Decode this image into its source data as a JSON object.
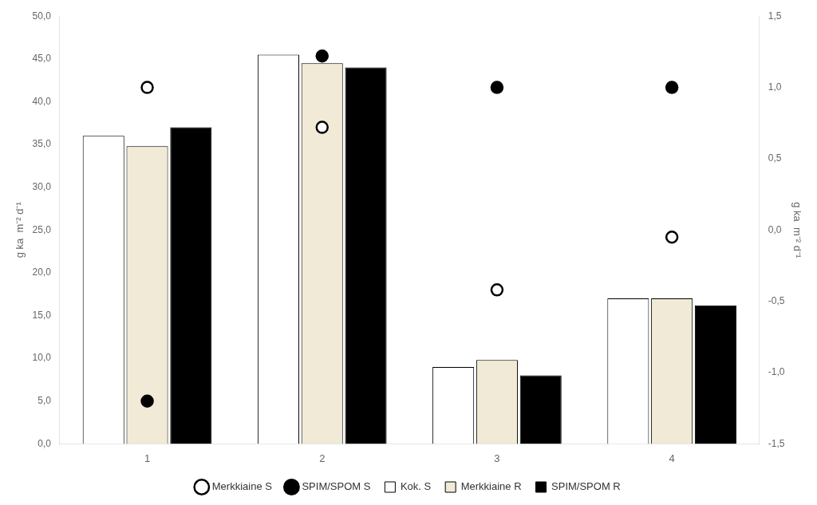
{
  "chart_data": {
    "type": "bar",
    "categories": [
      "1",
      "2",
      "3",
      "4"
    ],
    "series": [
      {
        "name": "Kok. S",
        "type": "bar",
        "color": "#ffffff",
        "values": [
          36.0,
          45.5,
          9.0,
          17.0
        ]
      },
      {
        "name": "Merkkiaine R",
        "type": "bar",
        "color": "#f0ead6",
        "values": [
          34.8,
          44.5,
          9.8,
          17.0
        ]
      },
      {
        "name": "SPIM/SPOM R",
        "type": "bar",
        "color": "#000000",
        "values": [
          37.0,
          44.0,
          8.0,
          16.2
        ]
      },
      {
        "name": "Merkkiaine S",
        "type": "scatter",
        "marker": "circle",
        "color": "#ffffff",
        "axis": "y2",
        "values": [
          1.0,
          0.72,
          -0.42,
          -0.05
        ]
      },
      {
        "name": "SPIM/SPOM S",
        "type": "scatter",
        "marker": "circle",
        "color": "#000000",
        "axis": "y2",
        "values": [
          -1.2,
          1.22,
          1.0,
          1.0
        ]
      }
    ],
    "ylabel": "g ka  m⁻² d⁻¹",
    "y2label": "g ka  m⁻² d⁻¹",
    "ylim": [
      0.0,
      50.0
    ],
    "yticks": [
      {
        "value": 0.0,
        "label": "0,0"
      },
      {
        "value": 5.0,
        "label": "5,0"
      },
      {
        "value": 10.0,
        "label": "10,0"
      },
      {
        "value": 15.0,
        "label": "15,0"
      },
      {
        "value": 20.0,
        "label": "20,0"
      },
      {
        "value": 25.0,
        "label": "25,0"
      },
      {
        "value": 30.0,
        "label": "30,0"
      },
      {
        "value": 35.0,
        "label": "35,0"
      },
      {
        "value": 40.0,
        "label": "40,0"
      },
      {
        "value": 45.0,
        "label": "45,0"
      },
      {
        "value": 50.0,
        "label": "50,0"
      }
    ],
    "y2lim": [
      -1.5,
      1.5
    ],
    "y2ticks": [
      {
        "value": -1.5,
        "label": "-1,5"
      },
      {
        "value": -1.0,
        "label": "-1,0"
      },
      {
        "value": -0.5,
        "label": "-0,5"
      },
      {
        "value": 0.0,
        "label": "0,0"
      },
      {
        "value": 0.5,
        "label": "0,5"
      },
      {
        "value": 1.0,
        "label": "1,0"
      },
      {
        "value": 1.5,
        "label": "1,5"
      }
    ],
    "grid": false,
    "legend": "bottom"
  }
}
